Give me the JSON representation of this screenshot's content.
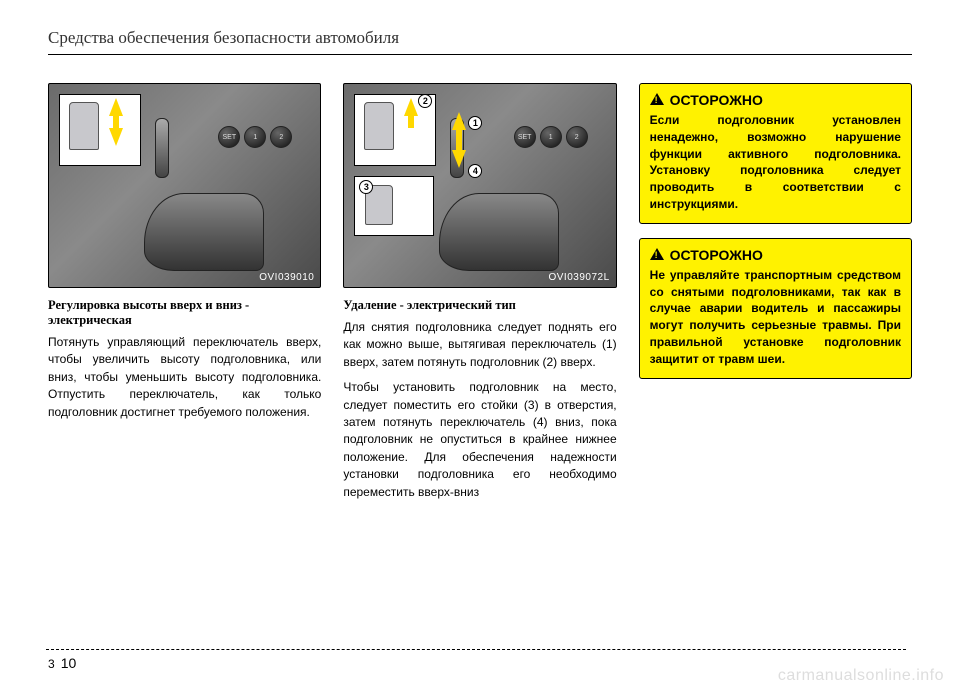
{
  "header": {
    "title": "Средства обеспечения безопасности автомобиля"
  },
  "col1": {
    "figure_id": "OVI039010",
    "subheading": "Регулировка высоты вверх и вниз - электрическая",
    "paragraph": "Потянуть управляющий переключатель вверх, чтобы увеличить высоту подголовника, или вниз, чтобы уменьшить высоту подголовника. Отпустить переключатель, как только подголовник достигнет требуемого положения."
  },
  "col2": {
    "figure_id": "OVI039072L",
    "subheading": "Удаление - электрический тип",
    "paragraph1": "Для снятия подголовника следует поднять его как можно выше, вытягивая переключатель (1) вверх, затем потянуть подголовник (2) вверх.",
    "paragraph2": "Чтобы установить подголовник на место, следует поместить его стойки (3) в отверстия, затем потянуть переключатель (4) вниз, пока подголовник не опуститься в крайнее нижнее положение. Для обеспечения надежности установки подголовника его необходимо переместить вверх-вниз"
  },
  "warnings": {
    "label": "ОСТОРОЖНО",
    "w1": "Если подголовник установлен ненадежно, возможно нарушение функции активного подголовника. Установку подголовника следует проводить в соответствии с инструкциями.",
    "w2": "Не управляйте транспортным средством со снятыми подголовниками, так как в случае аварии водитель и пассажиры могут получить серьезные травмы. При правильной установке подголовник защитит от травм шеи."
  },
  "circles": {
    "c1": "1",
    "c2": "2",
    "c3": "3",
    "c4": "4"
  },
  "buttons": {
    "set": "SET",
    "b1": "1",
    "b2": "2"
  },
  "footer": {
    "section": "3",
    "page": "10"
  },
  "watermark": "carmanualsonline.info",
  "colors": {
    "warning_bg": "#fff200",
    "arrow": "#ffd800",
    "text": "#000000"
  }
}
